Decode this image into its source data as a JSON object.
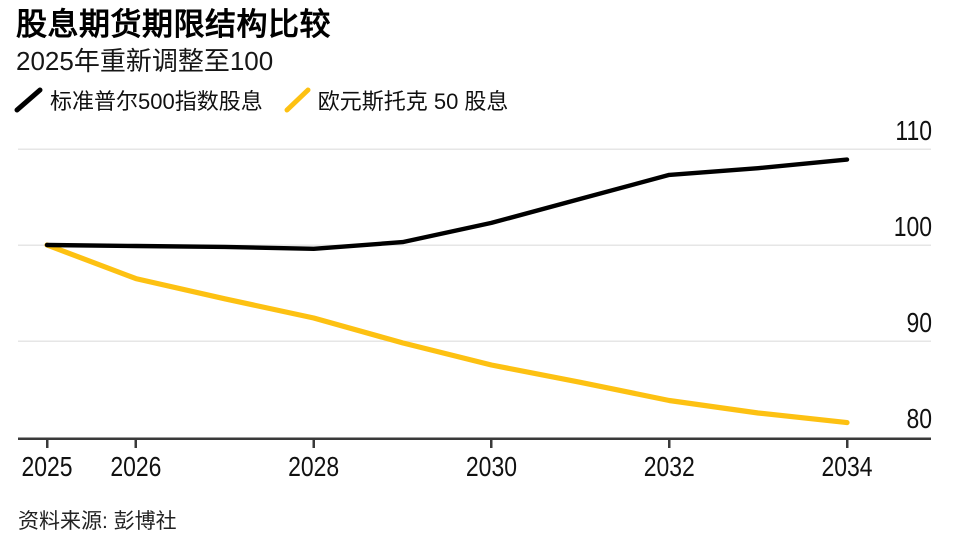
{
  "chart_data": {
    "type": "line",
    "title": "股息期货期限结构比较",
    "subtitle": "2025年重新调整至100",
    "x": [
      2025,
      2026,
      2027,
      2028,
      2029,
      2030,
      2031,
      2032,
      2033,
      2034
    ],
    "series": [
      {
        "name": "标准普尔500指数股息",
        "color": "#000000",
        "values": [
          100,
          99.9,
          99.8,
          99.6,
          100.3,
          102.3,
          104.8,
          107.3,
          108.0,
          108.9
        ]
      },
      {
        "name": "欧元斯托克 50 股息",
        "color": "#fdc112",
        "values": [
          100,
          96.5,
          94.4,
          92.4,
          89.8,
          87.5,
          85.7,
          83.8,
          82.5,
          81.5
        ]
      }
    ],
    "x_ticks": [
      2025,
      2026,
      2028,
      2030,
      2032,
      2034
    ],
    "y_ticks": [
      80,
      90,
      100,
      110
    ],
    "ylim": [
      78.5,
      112
    ],
    "xlabel": "",
    "ylabel": "",
    "grid": true,
    "legend_position": "top",
    "y_axis_side": "right",
    "grid_color": "#e6e6e6",
    "axis_color": "#3a3a3a",
    "tick_label_color": "#111111",
    "source": "资料来源: 彭博社"
  }
}
